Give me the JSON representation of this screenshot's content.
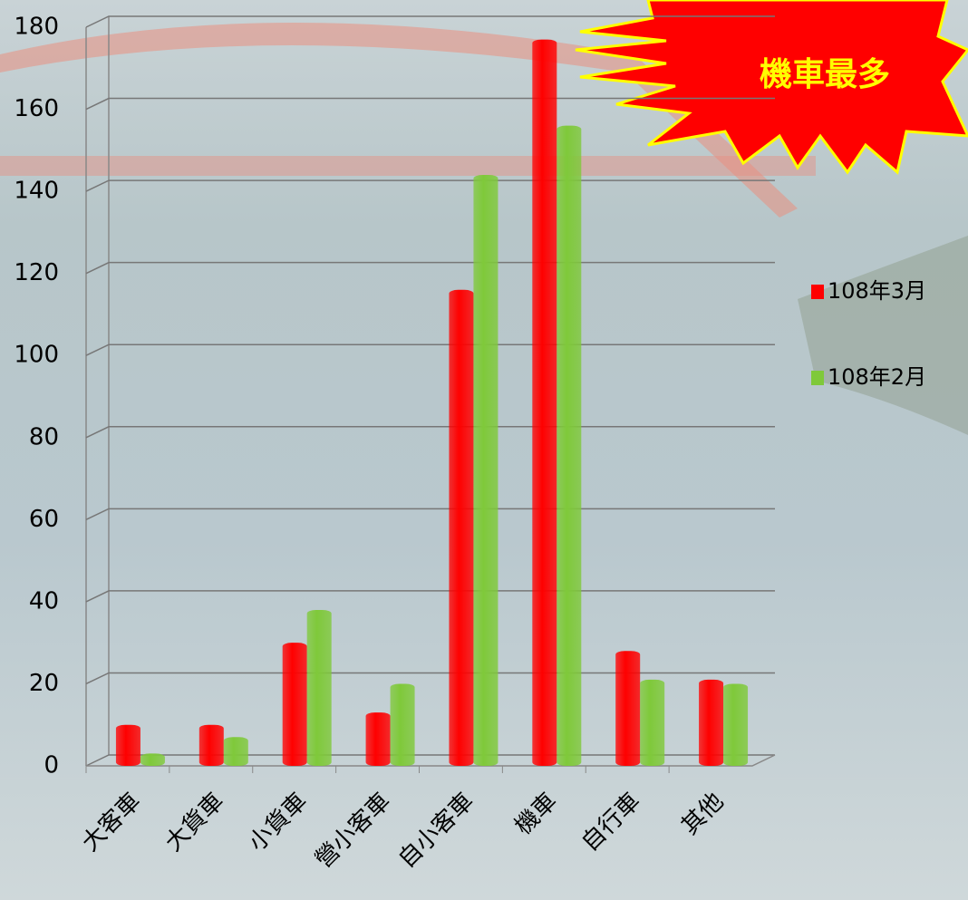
{
  "chart_data": {
    "type": "bar",
    "annotation": "機車最多",
    "categories": [
      "大客車",
      "大貨車",
      "小貨車",
      "營小客車",
      "自小客車",
      "機車",
      "自行車",
      "其他"
    ],
    "series": [
      {
        "name": "108年3月",
        "color": "#ff0000",
        "values": [
          10,
          10,
          30,
          13,
          116,
          177,
          28,
          21
        ]
      },
      {
        "name": "108年2月",
        "color": "#7fc93a",
        "values": [
          3,
          7,
          38,
          20,
          144,
          156,
          21,
          20
        ]
      }
    ],
    "ylim": [
      0,
      180
    ],
    "yticks": [
      0,
      20,
      40,
      60,
      80,
      100,
      120,
      140,
      160,
      180
    ],
    "grid": true,
    "legend": "right"
  }
}
